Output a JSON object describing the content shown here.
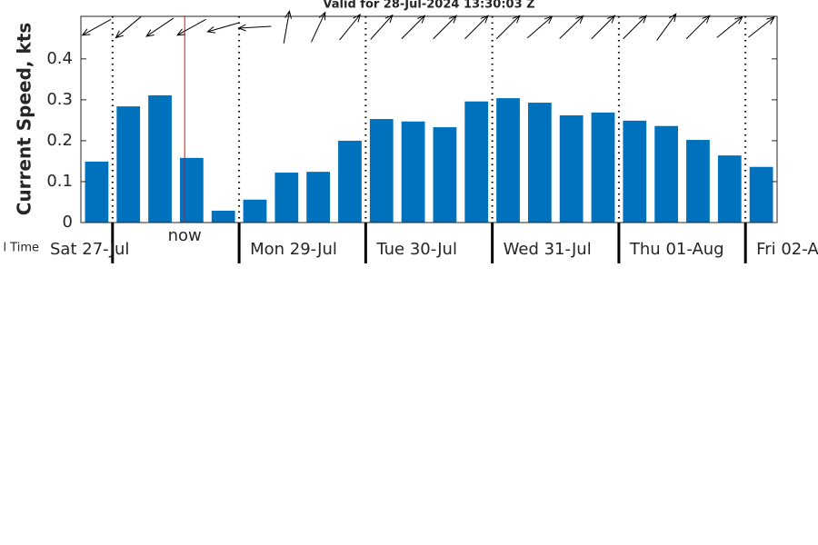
{
  "chart_data": {
    "type": "bar",
    "title": "Valid for 28-Jul-2024 13:30:03 Z",
    "y_label": "Current Speed, kts",
    "x_label": "l Time",
    "categories": [
      null,
      null,
      null,
      null,
      null,
      null,
      null,
      null,
      null,
      null,
      null,
      null,
      null,
      null,
      null,
      null,
      null,
      null,
      null,
      null,
      null,
      null
    ],
    "values": [
      0.149,
      0.284,
      0.311,
      0.158,
      0.029,
      0.056,
      0.122,
      0.124,
      0.2,
      0.253,
      0.247,
      0.233,
      0.296,
      0.304,
      0.293,
      0.262,
      0.269,
      0.249,
      0.236,
      0.202,
      0.164,
      0.136
    ],
    "directions": [
      241,
      230,
      236,
      241,
      254,
      267,
      10,
      25,
      39,
      42,
      45,
      45,
      45,
      45,
      49,
      46,
      45,
      45,
      36,
      45,
      51,
      52
    ],
    "color": "#0072bd",
    "ylim": [
      0,
      0.504
    ],
    "yticks": [
      0,
      0.1,
      0.2,
      0.3,
      0.4
    ],
    "xlim": [
      -0.5,
      21.5
    ],
    "xticks": [
      {
        "value": 0.5,
        "label": "Sat 27-Jul"
      },
      {
        "value": 4.5,
        "label": "Mon 29-Jul"
      },
      {
        "value": 8.5,
        "label": "Tue 30-Jul"
      },
      {
        "value": 12.5,
        "label": "Wed 31-Jul"
      },
      {
        "value": 16.5,
        "label": "Thu 01-Aug"
      },
      {
        "value": 20.5,
        "label": "Fri 02-A"
      }
    ],
    "now_marker": {
      "x": 2.78,
      "label": "now",
      "color": "#ff0000"
    }
  }
}
